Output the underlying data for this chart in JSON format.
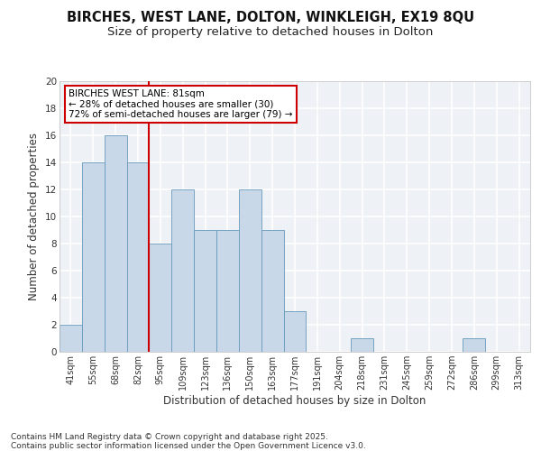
{
  "title1": "BIRCHES, WEST LANE, DOLTON, WINKLEIGH, EX19 8QU",
  "title2": "Size of property relative to detached houses in Dolton",
  "xlabel": "Distribution of detached houses by size in Dolton",
  "ylabel": "Number of detached properties",
  "categories": [
    "41sqm",
    "55sqm",
    "68sqm",
    "82sqm",
    "95sqm",
    "109sqm",
    "123sqm",
    "136sqm",
    "150sqm",
    "163sqm",
    "177sqm",
    "191sqm",
    "204sqm",
    "218sqm",
    "231sqm",
    "245sqm",
    "259sqm",
    "272sqm",
    "286sqm",
    "299sqm",
    "313sqm"
  ],
  "values": [
    2,
    14,
    16,
    14,
    8,
    12,
    9,
    9,
    12,
    9,
    3,
    0,
    0,
    1,
    0,
    0,
    0,
    0,
    1,
    0,
    0
  ],
  "bar_color": "#c8d8e8",
  "bar_edge_color": "#6699bb",
  "vline_color": "#cc0000",
  "vline_x_idx": 3,
  "annotation_text": "BIRCHES WEST LANE: 81sqm\n← 28% of detached houses are smaller (30)\n72% of semi-detached houses are larger (79) →",
  "annotation_box_facecolor": "#ffffff",
  "annotation_box_edgecolor": "#cc0000",
  "footnote": "Contains HM Land Registry data © Crown copyright and database right 2025.\nContains public sector information licensed under the Open Government Licence v3.0.",
  "ylim": [
    0,
    20
  ],
  "yticks": [
    0,
    2,
    4,
    6,
    8,
    10,
    12,
    14,
    16,
    18,
    20
  ],
  "bg_color": "#eef2f6",
  "grid_color": "#ffffff",
  "title1_fontsize": 10.5,
  "title2_fontsize": 9.5,
  "axis_label_fontsize": 8.5,
  "tick_fontsize": 7,
  "annotation_fontsize": 7.5,
  "footnote_fontsize": 6.5
}
